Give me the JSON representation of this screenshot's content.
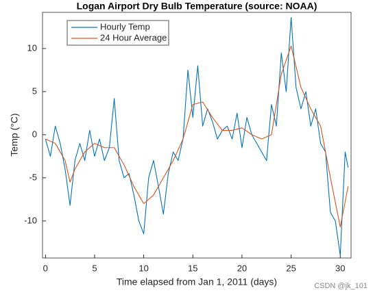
{
  "chart_data": {
    "type": "line",
    "title": "Logan Airport Dry Bulb Temperature (source: NOAA)",
    "x_label": "Time elapsed from Jan 1, 2011 (days)",
    "y_label": "Temp (°C)",
    "xlim": [
      -0.3,
      31.1
    ],
    "ylim": [
      -14.3,
      14.2
    ],
    "xticks": [
      0,
      5,
      10,
      15,
      20,
      25,
      30
    ],
    "yticks": [
      -10,
      -5,
      0,
      5,
      10
    ],
    "legend": "upper left",
    "grid": false,
    "series": [
      {
        "name": "Hourly Temp",
        "color": "#0072bd",
        "x": [
          0,
          0.5,
          1,
          1.5,
          2,
          2.5,
          3,
          3.5,
          4,
          4.5,
          5,
          5.5,
          6,
          6.5,
          7,
          7.5,
          8,
          8.5,
          9,
          9.5,
          10,
          10.5,
          11,
          11.5,
          12,
          12.5,
          13,
          13.5,
          14,
          14.5,
          15,
          15.5,
          16,
          16.5,
          17,
          17.5,
          18,
          18.5,
          19,
          19.5,
          20,
          20.5,
          21,
          21.5,
          22,
          22.5,
          23,
          23.5,
          24,
          24.5,
          25,
          25.5,
          26,
          26.5,
          27,
          27.5,
          28,
          28.5,
          29,
          29.5,
          30,
          30.5,
          30.8
        ],
        "values": [
          -0.5,
          -2.5,
          1,
          -1,
          -4,
          -8.2,
          -3,
          -1,
          -3,
          0.5,
          -2.5,
          -0.5,
          -3,
          -1.5,
          4.2,
          -3,
          -5,
          -4.5,
          -7,
          -10,
          -11.5,
          -5,
          -3,
          -6,
          -9.2,
          -4.5,
          -2,
          -3,
          -0.5,
          7.5,
          2,
          8,
          1,
          3,
          1.5,
          -0.5,
          0.5,
          1,
          -0.5,
          2.5,
          -1.5,
          2,
          0,
          -1,
          -2,
          -3,
          3.5,
          1,
          9.5,
          5,
          13.6,
          5.5,
          3,
          5,
          1,
          3,
          -1,
          -2,
          -9,
          -10,
          -14,
          -2,
          -3.8
        ]
      },
      {
        "name": "24 Hour Average",
        "color": "#d95319",
        "x": [
          0,
          1,
          2,
          2.5,
          3,
          4,
          5,
          6,
          7,
          8,
          9,
          10,
          11,
          12,
          13,
          14,
          15,
          16,
          17,
          18,
          19,
          20,
          21,
          22,
          23,
          24,
          25,
          26,
          27,
          28,
          29,
          30,
          30.8
        ],
        "values": [
          -0.5,
          -1,
          -3,
          -5.5,
          -4,
          -2,
          -1,
          -1.5,
          -1.5,
          -3.5,
          -6,
          -8,
          -7,
          -5,
          -3,
          -0.5,
          3.5,
          3.8,
          2,
          0.5,
          0.5,
          0.8,
          0,
          -0.5,
          0,
          7,
          10.3,
          5.5,
          3,
          1,
          -5,
          -10.7,
          -6
        ]
      }
    ],
    "watermark": "CSDN @jk_101"
  }
}
